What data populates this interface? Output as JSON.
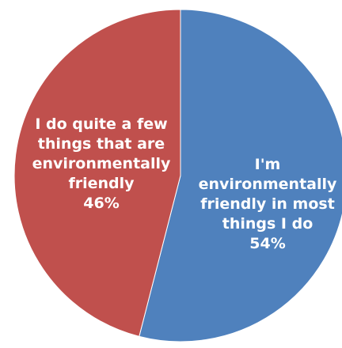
{
  "chart_data": {
    "type": "pie",
    "title": "",
    "slices": [
      {
        "label_lines": [
          "I'm",
          "environmentally",
          "friendly in most",
          "things I do"
        ],
        "percent_label": "54%",
        "value": 54,
        "color": "#4f81bd"
      },
      {
        "label_lines": [
          "I do quite a few",
          "things that are",
          "environmentally",
          "friendly"
        ],
        "percent_label": "46%",
        "value": 46,
        "color": "#c0504d"
      }
    ],
    "legend": "none"
  }
}
